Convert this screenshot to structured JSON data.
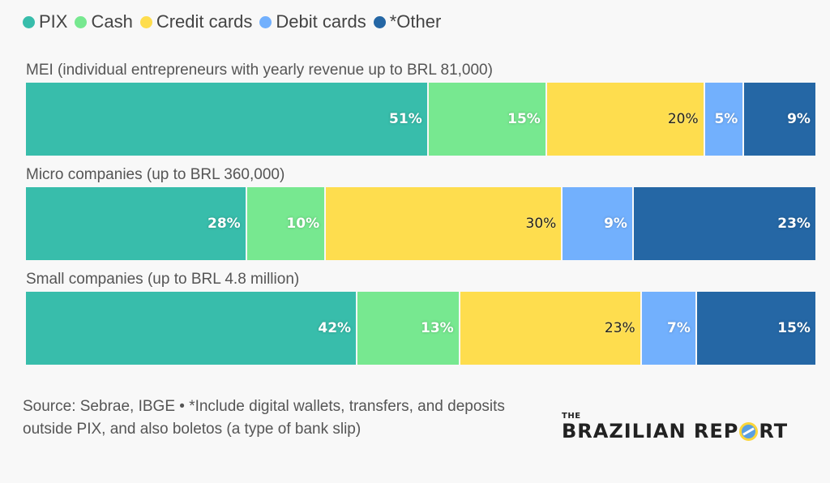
{
  "legend": [
    {
      "label": "PIX",
      "color": "#38BDAB"
    },
    {
      "label": "Cash",
      "color": "#77E890"
    },
    {
      "label": "Credit cards",
      "color": "#FEDD4E"
    },
    {
      "label": "Debit cards",
      "color": "#72B0FD"
    },
    {
      "label": "*Other",
      "color": "#2567A5"
    }
  ],
  "rows": [
    {
      "title": "MEI (individual entrepreneurs with yearly revenue up to BRL 81,000)",
      "segments": [
        {
          "label": "51%",
          "value": 51
        },
        {
          "label": "15%",
          "value": 15
        },
        {
          "label": "20%",
          "value": 20
        },
        {
          "label": "5%",
          "value": 5
        },
        {
          "label": "9%",
          "value": 9
        }
      ]
    },
    {
      "title": "Micro companies (up to BRL 360,000)",
      "segments": [
        {
          "label": "28%",
          "value": 28
        },
        {
          "label": "10%",
          "value": 10
        },
        {
          "label": "30%",
          "value": 30
        },
        {
          "label": "9%",
          "value": 9
        },
        {
          "label": "23%",
          "value": 23
        }
      ]
    },
    {
      "title": "Small companies (up to BRL 4.8 million)",
      "segments": [
        {
          "label": "42%",
          "value": 42
        },
        {
          "label": "13%",
          "value": 13
        },
        {
          "label": "23%",
          "value": 23
        },
        {
          "label": "7%",
          "value": 7
        },
        {
          "label": "15%",
          "value": 15
        }
      ]
    }
  ],
  "footer": {
    "note": "Source: Sebrae, IBGE • *Include digital wallets, transfers, and deposits outside PIX, and also boletos (a type of bank slip)",
    "logo_the": "THE",
    "logo_main_pre": "BRAZILIAN REP",
    "logo_main_post": "RT"
  },
  "chart_data": {
    "type": "bar",
    "orientation": "horizontal",
    "stacked": true,
    "normalized": true,
    "categories": [
      "MEI (individual entrepreneurs with yearly revenue up to BRL 81,000)",
      "Micro companies (up to BRL 360,000)",
      "Small companies (up to BRL 4.8 million)"
    ],
    "series": [
      {
        "name": "PIX",
        "color": "#38BDAB",
        "values": [
          51,
          28,
          42
        ]
      },
      {
        "name": "Cash",
        "color": "#77E890",
        "values": [
          15,
          10,
          13
        ]
      },
      {
        "name": "Credit cards",
        "color": "#FEDD4E",
        "values": [
          20,
          30,
          23
        ]
      },
      {
        "name": "Debit cards",
        "color": "#72B0FD",
        "values": [
          5,
          9,
          7
        ]
      },
      {
        "name": "*Other",
        "color": "#2567A5",
        "values": [
          9,
          23,
          15
        ]
      }
    ],
    "title": "",
    "xlabel": "",
    "ylabel": "",
    "xlim": [
      0,
      100
    ],
    "grid": false,
    "legend_position": "top",
    "annotations": [
      "Source: Sebrae, IBGE • *Include digital wallets, transfers, and deposits outside PIX, and also boletos (a type of bank slip)"
    ]
  }
}
